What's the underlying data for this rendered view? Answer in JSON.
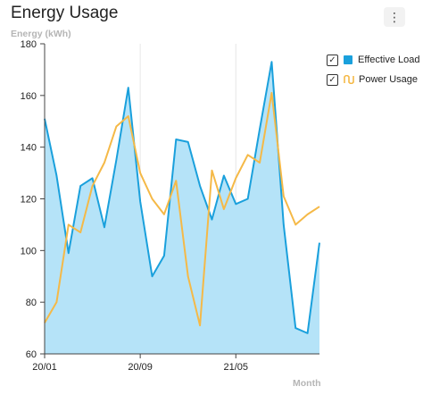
{
  "header": {
    "title": "Energy Usage",
    "menu_label": "⋮",
    "menu_icon": "more-vertical-icon"
  },
  "colors": {
    "effective_line": "#1aa0dc",
    "effective_fill": "#b5e3f8",
    "power_line": "#f5b947",
    "grid": "#e6e6e6",
    "axis": "#444444"
  },
  "chart_data": {
    "type": "area",
    "ylabel": "Energy (kWh)",
    "xlabel": "Month",
    "ylim": [
      60,
      180
    ],
    "yticks": [
      60,
      80,
      100,
      120,
      140,
      160,
      180
    ],
    "xtick_labels": [
      {
        "index": 0,
        "label": "20/01"
      },
      {
        "index": 8,
        "label": "20/09"
      },
      {
        "index": 16,
        "label": "21/05"
      }
    ],
    "grid": "vertical",
    "legend": "right",
    "x_count": 24,
    "series": [
      {
        "name": "Effective Load",
        "type": "area",
        "checked": true,
        "values": [
          151,
          129,
          99,
          125,
          128,
          109,
          135,
          163,
          119,
          90,
          98,
          143,
          142,
          125,
          112,
          129,
          118,
          120,
          147,
          173,
          110,
          70,
          68,
          103
        ]
      },
      {
        "name": "Power Usage",
        "type": "line",
        "checked": true,
        "values": [
          72,
          80,
          110,
          107,
          125,
          134,
          148,
          152,
          130,
          120,
          114,
          127,
          90,
          71,
          131,
          116,
          128,
          137,
          134,
          161,
          121,
          110,
          114,
          117
        ]
      }
    ]
  }
}
